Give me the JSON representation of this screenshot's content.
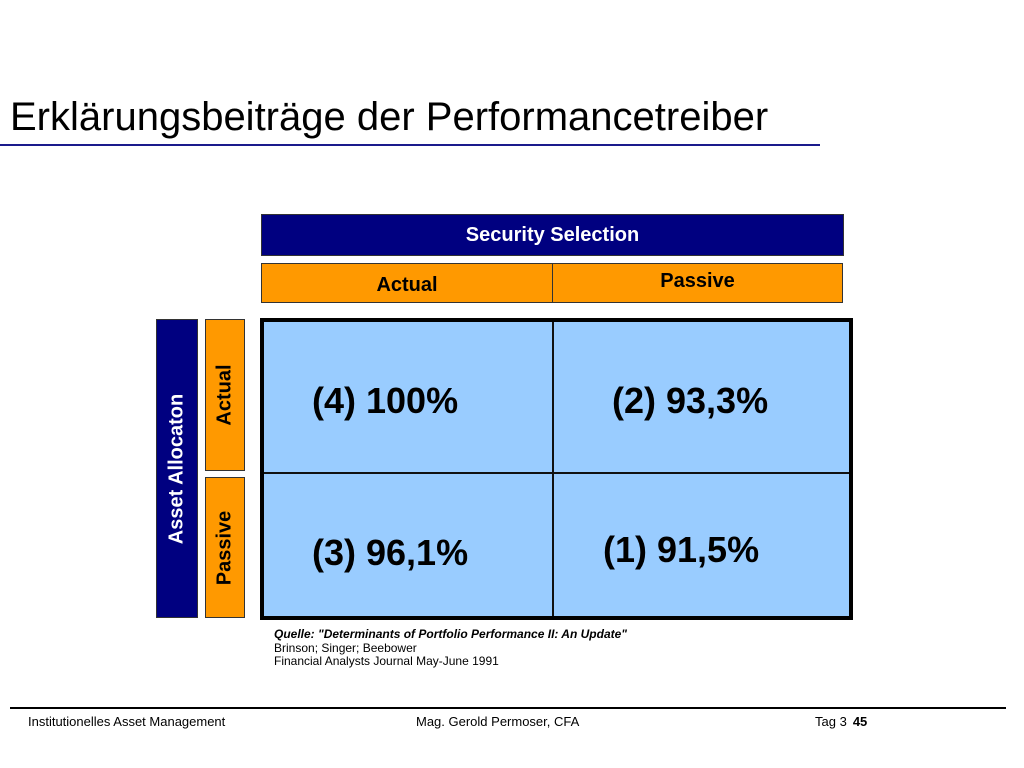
{
  "title": "Erklärungsbeiträge der Performancetreiber",
  "matrix": {
    "top_header": "Security Selection",
    "columns": [
      "Actual",
      "Passive"
    ],
    "side_header": "Asset Allocaton",
    "rows": [
      "Actual",
      "Passive"
    ],
    "cells": {
      "actual_actual": "(4) 100%",
      "actual_passive": "(2) 93,3%",
      "passive_actual": "(3) 96,1%",
      "passive_passive": "(1) 91,5%"
    }
  },
  "source": {
    "quote": "Quelle: \"Determinants of Portfolio Performance II: An Update\"",
    "authors": "Brinson; Singer; Beebower",
    "journal": "Financial Analysts Journal May-June 1991"
  },
  "footer": {
    "left": "Institutionelles Asset Management",
    "center": "Mag. Gerold Permoser, CFA",
    "day": "Tag 3",
    "page": "45"
  },
  "colors": {
    "navy": "#000080",
    "orange": "#ff9900",
    "cell_blue": "#99ccff"
  }
}
